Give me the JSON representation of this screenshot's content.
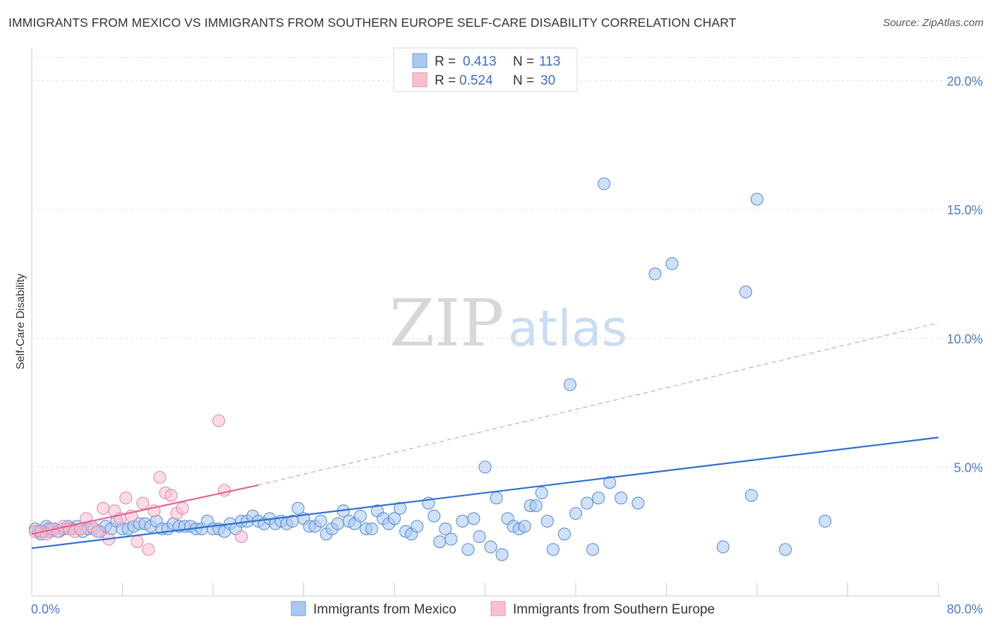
{
  "header": {
    "title": "IMMIGRANTS FROM MEXICO VS IMMIGRANTS FROM SOUTHERN EUROPE SELF-CARE DISABILITY CORRELATION CHART",
    "source": "Source: ZipAtlas.com"
  },
  "watermark": {
    "zip": "ZIP",
    "atlas": "atlas"
  },
  "legend": {
    "r_label": "R =",
    "n_label": "N =",
    "entries": [
      {
        "r": "0.413",
        "n": "113",
        "color": "#a9c8f0",
        "stroke": "#6f9fe0"
      },
      {
        "r": "0.524",
        "n": "30",
        "color": "#f7c0d2",
        "stroke": "#e891b0"
      }
    ]
  },
  "colors": {
    "mexico_fill": "#a9c8f0",
    "mexico_stroke": "#5b8fd8",
    "mexico_line": "#2f6fd0",
    "europe_fill": "#f7c0d2",
    "europe_stroke": "#e68aab",
    "europe_line": "#e0668f",
    "grid": "#dddddd",
    "axis_text": "#4a7cc7"
  },
  "chart_data": {
    "type": "scatter",
    "title": "IMMIGRANTS FROM MEXICO VS IMMIGRANTS FROM SOUTHERN EUROPE SELF-CARE DISABILITY CORRELATION CHART",
    "xlabel": "",
    "ylabel": "Self-Care Disability",
    "xlim": [
      0,
      80
    ],
    "ylim": [
      0,
      21
    ],
    "x_tick_labels": [
      "0.0%",
      "80.0%"
    ],
    "y_ticks": [
      5,
      10,
      15,
      20
    ],
    "y_tick_labels": [
      "5.0%",
      "10.0%",
      "15.0%",
      "20.0%"
    ],
    "series": [
      {
        "name": "Immigrants from Mexico",
        "points": [
          [
            0.3,
            2.6
          ],
          [
            0.6,
            2.5
          ],
          [
            1.0,
            2.5
          ],
          [
            1.3,
            2.7
          ],
          [
            1.6,
            2.5
          ],
          [
            2.0,
            2.6
          ],
          [
            2.4,
            2.5
          ],
          [
            2.8,
            2.6
          ],
          [
            3.2,
            2.7
          ],
          [
            3.6,
            2.6
          ],
          [
            4.0,
            2.7
          ],
          [
            4.5,
            2.5
          ],
          [
            5.0,
            2.6
          ],
          [
            5.5,
            2.6
          ],
          [
            6.0,
            2.5
          ],
          [
            6.5,
            2.7
          ],
          [
            7.0,
            2.6
          ],
          [
            7.5,
            2.9
          ],
          [
            8.0,
            2.6
          ],
          [
            8.5,
            2.6
          ],
          [
            9.0,
            2.7
          ],
          [
            9.5,
            2.8
          ],
          [
            10.0,
            2.8
          ],
          [
            10.5,
            2.7
          ],
          [
            11.0,
            2.9
          ],
          [
            11.5,
            2.6
          ],
          [
            12.0,
            2.6
          ],
          [
            12.5,
            2.8
          ],
          [
            13.0,
            2.7
          ],
          [
            13.5,
            2.7
          ],
          [
            14.0,
            2.7
          ],
          [
            14.5,
            2.6
          ],
          [
            15.0,
            2.6
          ],
          [
            15.5,
            2.9
          ],
          [
            16.0,
            2.6
          ],
          [
            16.5,
            2.6
          ],
          [
            17.0,
            2.5
          ],
          [
            17.5,
            2.8
          ],
          [
            18.0,
            2.6
          ],
          [
            18.5,
            2.9
          ],
          [
            19.0,
            2.9
          ],
          [
            19.5,
            3.1
          ],
          [
            20.0,
            2.9
          ],
          [
            20.5,
            2.8
          ],
          [
            21.0,
            3.0
          ],
          [
            21.5,
            2.8
          ],
          [
            22.0,
            2.9
          ],
          [
            22.5,
            2.8
          ],
          [
            23.0,
            2.9
          ],
          [
            23.5,
            3.4
          ],
          [
            24.0,
            3.0
          ],
          [
            24.5,
            2.7
          ],
          [
            25.0,
            2.7
          ],
          [
            25.5,
            2.9
          ],
          [
            26.0,
            2.4
          ],
          [
            26.5,
            2.6
          ],
          [
            27.0,
            2.8
          ],
          [
            27.5,
            3.3
          ],
          [
            28.0,
            2.9
          ],
          [
            28.5,
            2.8
          ],
          [
            29.0,
            3.1
          ],
          [
            29.5,
            2.6
          ],
          [
            30.0,
            2.6
          ],
          [
            30.5,
            3.3
          ],
          [
            31.0,
            3.0
          ],
          [
            31.5,
            2.8
          ],
          [
            32.0,
            3.0
          ],
          [
            32.5,
            3.4
          ],
          [
            33.0,
            2.5
          ],
          [
            33.5,
            2.4
          ],
          [
            34.0,
            2.7
          ],
          [
            35.0,
            3.6
          ],
          [
            35.5,
            3.1
          ],
          [
            36.0,
            2.1
          ],
          [
            36.5,
            2.6
          ],
          [
            37.0,
            2.2
          ],
          [
            38.0,
            2.9
          ],
          [
            38.5,
            1.8
          ],
          [
            39.0,
            3.0
          ],
          [
            39.5,
            2.3
          ],
          [
            40.0,
            5.0
          ],
          [
            40.5,
            1.9
          ],
          [
            41.0,
            3.8
          ],
          [
            41.5,
            1.6
          ],
          [
            42.0,
            3.0
          ],
          [
            42.5,
            2.7
          ],
          [
            43.0,
            2.6
          ],
          [
            43.5,
            2.7
          ],
          [
            44.0,
            3.5
          ],
          [
            44.5,
            3.5
          ],
          [
            45.0,
            4.0
          ],
          [
            45.5,
            2.9
          ],
          [
            46.0,
            1.8
          ],
          [
            47.0,
            2.4
          ],
          [
            47.5,
            8.2
          ],
          [
            48.0,
            3.2
          ],
          [
            49.0,
            3.6
          ],
          [
            49.5,
            1.8
          ],
          [
            50.0,
            3.8
          ],
          [
            50.5,
            16.0
          ],
          [
            51.0,
            4.4
          ],
          [
            52.0,
            3.8
          ],
          [
            53.5,
            3.6
          ],
          [
            55.0,
            12.5
          ],
          [
            56.5,
            12.9
          ],
          [
            61.0,
            1.9
          ],
          [
            63.5,
            3.9
          ],
          [
            63.0,
            11.8
          ],
          [
            64.0,
            15.4
          ],
          [
            66.5,
            1.8
          ],
          [
            70.0,
            2.9
          ],
          [
            0.8,
            2.4
          ],
          [
            1.5,
            2.6
          ]
        ]
      },
      {
        "name": "Immigrants from Southern Europe",
        "points": [
          [
            0.3,
            2.5
          ],
          [
            0.8,
            2.5
          ],
          [
            1.3,
            2.4
          ],
          [
            1.8,
            2.6
          ],
          [
            2.3,
            2.5
          ],
          [
            2.8,
            2.7
          ],
          [
            3.3,
            2.6
          ],
          [
            3.8,
            2.5
          ],
          [
            4.3,
            2.6
          ],
          [
            4.8,
            3.0
          ],
          [
            5.3,
            2.7
          ],
          [
            5.8,
            2.5
          ],
          [
            6.3,
            3.4
          ],
          [
            6.8,
            2.2
          ],
          [
            7.3,
            3.3
          ],
          [
            7.8,
            3.0
          ],
          [
            8.3,
            3.8
          ],
          [
            8.8,
            3.1
          ],
          [
            9.3,
            2.1
          ],
          [
            9.8,
            3.6
          ],
          [
            10.3,
            1.8
          ],
          [
            10.8,
            3.3
          ],
          [
            11.3,
            4.6
          ],
          [
            11.8,
            4.0
          ],
          [
            12.3,
            3.9
          ],
          [
            12.8,
            3.2
          ],
          [
            13.3,
            3.4
          ],
          [
            16.5,
            6.8
          ],
          [
            17.0,
            4.1
          ],
          [
            18.5,
            2.3
          ]
        ]
      }
    ],
    "trend_lines": [
      {
        "series": "Immigrants from Mexico",
        "x": [
          0,
          80
        ],
        "y": [
          1.85,
          6.15
        ],
        "style": "solid"
      },
      {
        "series": "Immigrants from Southern Europe",
        "x": [
          0,
          20
        ],
        "y": [
          2.4,
          4.3
        ],
        "style": "solid"
      },
      {
        "series": "Immigrants from Southern Europe",
        "x": [
          20,
          80
        ],
        "y": [
          4.3,
          10.6
        ],
        "style": "dashed"
      }
    ],
    "legend_position": "top-center",
    "bottom_legend": [
      "Immigrants from Mexico",
      "Immigrants from Southern Europe"
    ],
    "grid": true
  }
}
